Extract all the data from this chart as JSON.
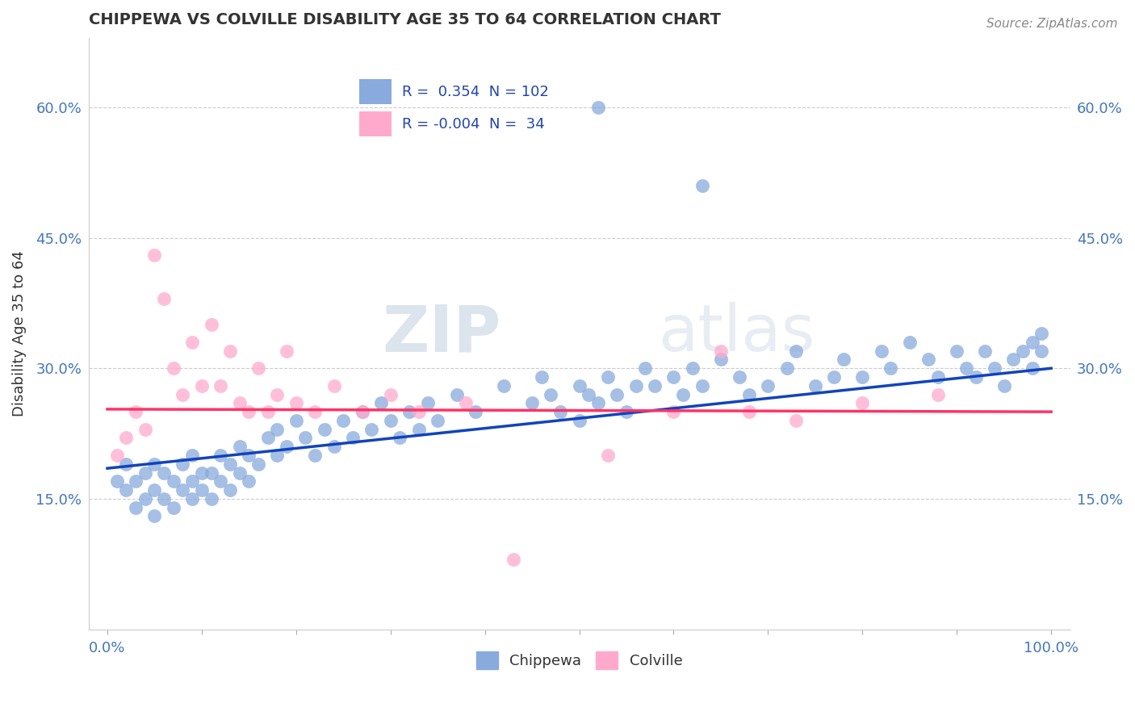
{
  "title": "CHIPPEWA VS COLVILLE DISABILITY AGE 35 TO 64 CORRELATION CHART",
  "source_text": "Source: ZipAtlas.com",
  "ylabel": "Disability Age 35 to 64",
  "xlim": [
    -0.02,
    1.02
  ],
  "ylim": [
    0.0,
    0.68
  ],
  "yticks": [
    0.15,
    0.3,
    0.45,
    0.6
  ],
  "xticks": [
    0.0,
    0.1,
    0.2,
    0.3,
    0.4,
    0.5,
    0.6,
    0.7,
    0.8,
    0.9,
    1.0
  ],
  "xticklabels_show": [
    "0.0%",
    "100.0%"
  ],
  "xticklabels_show_pos": [
    0.0,
    1.0
  ],
  "yticklabels": [
    "15.0%",
    "30.0%",
    "45.0%",
    "60.0%"
  ],
  "chippewa_color": "#88AADD",
  "chippewa_edge_color": "#88AADD",
  "colville_color": "#FFAACC",
  "colville_edge_color": "#FFAACC",
  "chippewa_line_color": "#1144BB",
  "colville_line_color": "#FF3366",
  "legend_R_chippewa": "0.354",
  "legend_N_chippewa": "102",
  "legend_R_colville": "-0.004",
  "legend_N_colville": "34",
  "watermark_zip": "ZIP",
  "watermark_atlas": "atlas",
  "chippewa_x": [
    0.01,
    0.02,
    0.02,
    0.03,
    0.03,
    0.04,
    0.04,
    0.05,
    0.05,
    0.05,
    0.06,
    0.06,
    0.07,
    0.07,
    0.08,
    0.08,
    0.09,
    0.09,
    0.09,
    0.1,
    0.1,
    0.11,
    0.11,
    0.12,
    0.12,
    0.13,
    0.13,
    0.14,
    0.14,
    0.15,
    0.15,
    0.16,
    0.17,
    0.18,
    0.18,
    0.19,
    0.2,
    0.21,
    0.22,
    0.23,
    0.24,
    0.25,
    0.26,
    0.27,
    0.28,
    0.29,
    0.3,
    0.31,
    0.32,
    0.33,
    0.34,
    0.35,
    0.37,
    0.39,
    0.42,
    0.45,
    0.46,
    0.47,
    0.48,
    0.5,
    0.5,
    0.51,
    0.52,
    0.53,
    0.54,
    0.55,
    0.56,
    0.57,
    0.58,
    0.6,
    0.61,
    0.62,
    0.63,
    0.65,
    0.67,
    0.68,
    0.7,
    0.72,
    0.73,
    0.75,
    0.77,
    0.78,
    0.8,
    0.82,
    0.83,
    0.85,
    0.87,
    0.88,
    0.9,
    0.91,
    0.92,
    0.93,
    0.94,
    0.95,
    0.96,
    0.97,
    0.98,
    0.98,
    0.99,
    0.99,
    0.52,
    0.63
  ],
  "chippewa_y": [
    0.17,
    0.16,
    0.19,
    0.14,
    0.17,
    0.15,
    0.18,
    0.13,
    0.16,
    0.19,
    0.15,
    0.18,
    0.14,
    0.17,
    0.16,
    0.19,
    0.15,
    0.17,
    0.2,
    0.16,
    0.18,
    0.15,
    0.18,
    0.17,
    0.2,
    0.16,
    0.19,
    0.18,
    0.21,
    0.17,
    0.2,
    0.19,
    0.22,
    0.2,
    0.23,
    0.21,
    0.24,
    0.22,
    0.2,
    0.23,
    0.21,
    0.24,
    0.22,
    0.25,
    0.23,
    0.26,
    0.24,
    0.22,
    0.25,
    0.23,
    0.26,
    0.24,
    0.27,
    0.25,
    0.28,
    0.26,
    0.29,
    0.27,
    0.25,
    0.28,
    0.24,
    0.27,
    0.26,
    0.29,
    0.27,
    0.25,
    0.28,
    0.3,
    0.28,
    0.29,
    0.27,
    0.3,
    0.28,
    0.31,
    0.29,
    0.27,
    0.28,
    0.3,
    0.32,
    0.28,
    0.29,
    0.31,
    0.29,
    0.32,
    0.3,
    0.33,
    0.31,
    0.29,
    0.32,
    0.3,
    0.29,
    0.32,
    0.3,
    0.28,
    0.31,
    0.32,
    0.3,
    0.33,
    0.32,
    0.34,
    0.6,
    0.51
  ],
  "colville_x": [
    0.01,
    0.02,
    0.03,
    0.04,
    0.05,
    0.06,
    0.07,
    0.08,
    0.09,
    0.1,
    0.11,
    0.12,
    0.13,
    0.14,
    0.15,
    0.16,
    0.17,
    0.18,
    0.19,
    0.2,
    0.22,
    0.24,
    0.27,
    0.3,
    0.33,
    0.38,
    0.43,
    0.53,
    0.6,
    0.65,
    0.68,
    0.73,
    0.8,
    0.88
  ],
  "colville_y": [
    0.2,
    0.22,
    0.25,
    0.23,
    0.43,
    0.38,
    0.3,
    0.27,
    0.33,
    0.28,
    0.35,
    0.28,
    0.32,
    0.26,
    0.25,
    0.3,
    0.25,
    0.27,
    0.32,
    0.26,
    0.25,
    0.28,
    0.25,
    0.27,
    0.25,
    0.26,
    0.08,
    0.2,
    0.25,
    0.32,
    0.25,
    0.24,
    0.26,
    0.27
  ],
  "chippewa_trend_x": [
    0.0,
    1.0
  ],
  "chippewa_trend_y": [
    0.185,
    0.3
  ],
  "colville_trend_y": [
    0.253,
    0.25
  ],
  "grid_color": "#CCCCCC",
  "title_color": "#333333",
  "axis_tick_color": "#4477BB",
  "bg_color": "#FFFFFF"
}
